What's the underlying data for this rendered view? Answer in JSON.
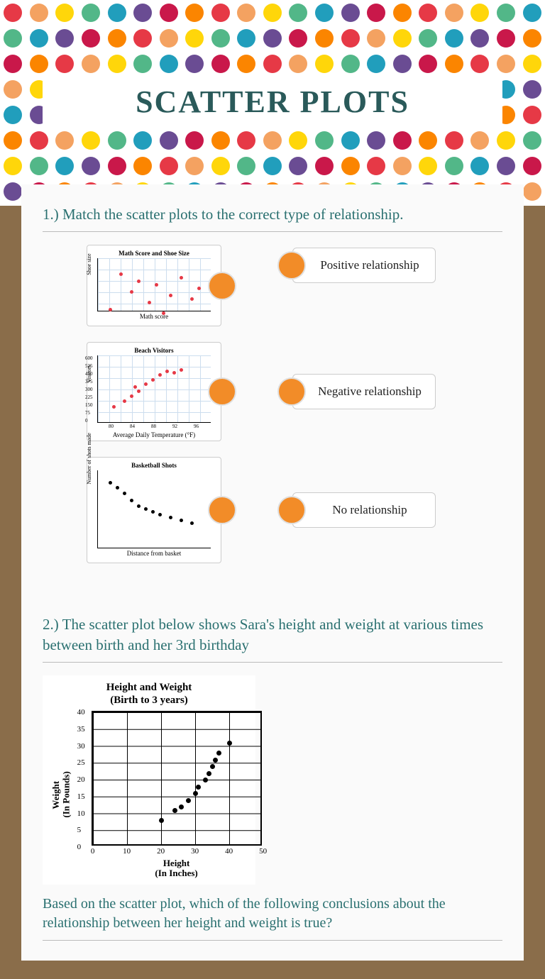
{
  "header": {
    "title": "SCATTER PLOTS",
    "dot_colors": [
      "#e63946",
      "#f4a261",
      "#ffd60a",
      "#52b788",
      "#219ebc",
      "#6a4c93",
      "#c9184a",
      "#fb8500"
    ],
    "rows": 9,
    "per_row": 21,
    "title_color": "#2a5a5a",
    "banner_bg": "#ffffff"
  },
  "background_color": "#8a6d4a",
  "card_bg": "#fafafa",
  "question_color": "#2a7070",
  "q1": {
    "prompt": "1.) Match the scatter plots to the correct type of relationship.",
    "node_color": "#f28c28",
    "charts": [
      {
        "title": "Math Score and Shoe Size",
        "xlabel": "Math score",
        "ylabel": "Shoe size",
        "grid": true,
        "point_color": "#e63946",
        "points": [
          [
            15,
            70
          ],
          [
            30,
            20
          ],
          [
            45,
            45
          ],
          [
            55,
            30
          ],
          [
            70,
            60
          ],
          [
            80,
            35
          ],
          [
            90,
            75
          ],
          [
            100,
            50
          ],
          [
            115,
            25
          ],
          [
            130,
            55
          ],
          [
            140,
            40
          ]
        ]
      },
      {
        "title": "Beach Visitors",
        "xlabel": "Average Daily Temperature (°F)",
        "ylabel": "Visitors",
        "grid": true,
        "point_color": "#e63946",
        "yticks": [
          "600",
          "525",
          "450",
          "375",
          "300",
          "225",
          "150",
          "75",
          "0"
        ],
        "xticks": [
          "80",
          "84",
          "88",
          "92",
          "96"
        ],
        "points": [
          [
            20,
            70
          ],
          [
            35,
            62
          ],
          [
            45,
            55
          ],
          [
            55,
            48
          ],
          [
            50,
            42
          ],
          [
            65,
            38
          ],
          [
            75,
            32
          ],
          [
            85,
            25
          ],
          [
            95,
            20
          ],
          [
            105,
            22
          ],
          [
            115,
            18
          ]
        ]
      },
      {
        "title": "Basketball Shots",
        "xlabel": "Distance from basket",
        "ylabel": "Number of shots made",
        "grid": false,
        "point_color": "#000000",
        "points": [
          [
            15,
            15
          ],
          [
            25,
            22
          ],
          [
            35,
            30
          ],
          [
            45,
            40
          ],
          [
            55,
            48
          ],
          [
            65,
            52
          ],
          [
            75,
            56
          ],
          [
            85,
            60
          ],
          [
            100,
            64
          ],
          [
            115,
            68
          ],
          [
            130,
            72
          ]
        ]
      }
    ],
    "answers": [
      {
        "label": "Positive relationship"
      },
      {
        "label": "Negative relationship"
      },
      {
        "label": "No relationship"
      }
    ]
  },
  "q2": {
    "prompt": "2.) The scatter plot below shows Sara's height and weight at various times between birth and her 3rd birthday",
    "chart": {
      "title_line1": "Height and Weight",
      "title_line2": "(Birth to 3 years)",
      "ylabel_line1": "Weight",
      "ylabel_line2": "(In Pounds)",
      "xlabel_line1": "Height",
      "xlabel_line2": "(In Inches)",
      "xlim": [
        0,
        50
      ],
      "ylim": [
        0,
        40
      ],
      "xtick_step": 10,
      "ytick_step": 5,
      "yticks": [
        0,
        5,
        10,
        15,
        20,
        25,
        30,
        35,
        40
      ],
      "xticks": [
        0,
        10,
        20,
        30,
        40,
        50
      ],
      "point_color": "#000000",
      "points": [
        [
          20,
          8
        ],
        [
          24,
          11
        ],
        [
          26,
          12
        ],
        [
          28,
          14
        ],
        [
          30,
          16
        ],
        [
          31,
          18
        ],
        [
          33,
          20
        ],
        [
          34,
          22
        ],
        [
          35,
          24
        ],
        [
          36,
          26
        ],
        [
          37,
          28
        ],
        [
          40,
          31
        ]
      ]
    },
    "conclusion": "Based on the scatter plot, which of the following conclusions about the relationship between her height and weight is true?"
  }
}
